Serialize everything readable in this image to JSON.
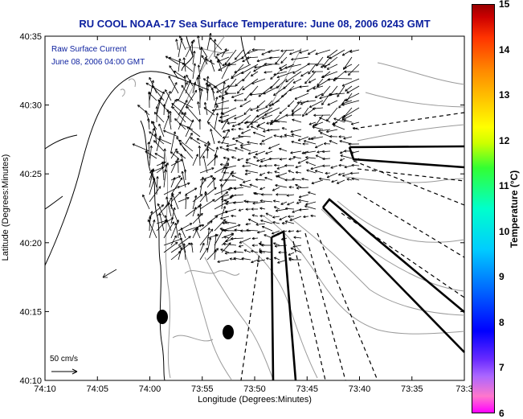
{
  "title": "RU COOL  NOAA-17  Sea Surface Temperature:  June 08, 2006 0243 GMT",
  "annotation": {
    "line1": "Raw Surface Current",
    "line2": "June 08, 2006 04:00 GMT"
  },
  "scale_label": "50 cm/s",
  "xaxis": {
    "label": "Longitude (Degrees:Minutes)",
    "ticks": [
      "74:10",
      "74:05",
      "74:00",
      "73:55",
      "73:50",
      "73:45",
      "73:40",
      "73:35",
      "73:3"
    ]
  },
  "yaxis": {
    "label": "Latitude (Degrees:Minutes)",
    "ticks": [
      "40:35",
      "40:30",
      "40:25",
      "40:20",
      "40:15",
      "40:10"
    ]
  },
  "colorbar": {
    "label": "Temperature (°C)",
    "ticks": [
      "15",
      "14",
      "13",
      "12",
      "11",
      "10",
      "9",
      "8",
      "7",
      "6"
    ]
  },
  "colors": {
    "title": "#0b1f9e",
    "annotation": "#0b1f9e",
    "coast": "#000000",
    "isobath": "#999999",
    "vectors": "#000000"
  }
}
